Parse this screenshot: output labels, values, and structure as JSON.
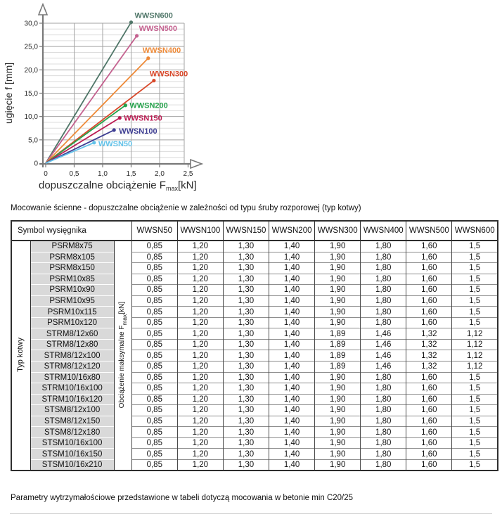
{
  "chart_data": {
    "type": "line",
    "title": "",
    "ylabel": "ugięcie f [mm]",
    "xlabel_pre": "dopuszczalne obciążenie F",
    "xlabel_sub": "max",
    "xlabel_post": "[kN]",
    "xlim": [
      0,
      2.5
    ],
    "ylim": [
      0,
      30
    ],
    "x_ticks": [
      "0",
      "0,5",
      "1,0",
      "1,5",
      "2,0",
      "2,5"
    ],
    "x_tick_values": [
      0,
      0.5,
      1.0,
      1.5,
      2.0,
      2.5
    ],
    "y_ticks": [
      "0",
      "5,0",
      "10,0",
      "15,0",
      "20,0",
      "25,0",
      "30,0"
    ],
    "y_tick_values": [
      0,
      5,
      10,
      15,
      20,
      25,
      30
    ],
    "grid": {
      "x_major": 0.5,
      "y_major": 5,
      "y_minor": 1.25,
      "on": true
    },
    "legend_position": "inline-labels",
    "series": [
      {
        "name": "WWSN600",
        "color": "#4f7668",
        "points": [
          [
            0,
            0
          ],
          [
            1.5,
            30.2
          ]
        ],
        "label_pos": "above"
      },
      {
        "name": "WWSN500",
        "color": "#c4618f",
        "points": [
          [
            0,
            0
          ],
          [
            1.6,
            27.3
          ]
        ],
        "label_pos": "above"
      },
      {
        "name": "WWSN400",
        "color": "#ee8a38",
        "points": [
          [
            0,
            0
          ],
          [
            1.8,
            22.5
          ]
        ],
        "label_pos": "above"
      },
      {
        "name": "WWSN300",
        "color": "#d8482a",
        "points": [
          [
            0,
            0
          ],
          [
            1.9,
            17.7
          ]
        ],
        "label_pos": "above"
      },
      {
        "name": "WWSN200",
        "color": "#26a34c",
        "points": [
          [
            0,
            0
          ],
          [
            1.4,
            12.4
          ]
        ],
        "label_pos": "right"
      },
      {
        "name": "WWSN150",
        "color": "#bb1b52",
        "points": [
          [
            0,
            0
          ],
          [
            1.3,
            9.7
          ]
        ],
        "label_pos": "right"
      },
      {
        "name": "WWSN100",
        "color": "#3d3d92",
        "points": [
          [
            0,
            0
          ],
          [
            1.2,
            7.1
          ]
        ],
        "label_pos": "right"
      },
      {
        "name": "WWSN50",
        "color": "#62c2e9",
        "points": [
          [
            0,
            0
          ],
          [
            0.85,
            4.4
          ]
        ],
        "label_pos": "right"
      }
    ]
  },
  "caption": "Mocowanie ścienne - dopuszczalne obciążenie w zależności od typu śruby rozporowej (typ kotwy)",
  "table": {
    "header_left": "Symbol wysięgnika",
    "columns": [
      "WWSN50",
      "WWSN100",
      "WWSN150",
      "WWSN200",
      "WWSN300",
      "WWSN400",
      "WWSN500",
      "WWSN600"
    ],
    "row_group_label": "Typ kotwy",
    "values_label_pre": "Obciążenie maksymalne F",
    "values_label_sub": "max",
    "values_label_post": "[kN]",
    "rows": [
      {
        "symbol": "PSRM8x75",
        "values": [
          "0,85",
          "1,20",
          "1,30",
          "1,40",
          "1,90",
          "1,80",
          "1,60",
          "1,5"
        ]
      },
      {
        "symbol": "PSRM8x105",
        "values": [
          "0,85",
          "1,20",
          "1,30",
          "1,40",
          "1,90",
          "1,80",
          "1,60",
          "1,5"
        ]
      },
      {
        "symbol": "PSRM8x150",
        "values": [
          "0,85",
          "1,20",
          "1,30",
          "1,40",
          "1,90",
          "1,80",
          "1,60",
          "1,5"
        ]
      },
      {
        "symbol": "PSRM10x85",
        "values": [
          "0,85",
          "1,20",
          "1,30",
          "1,40",
          "1,90",
          "1,80",
          "1,60",
          "1,5"
        ]
      },
      {
        "symbol": "PSRM10x90",
        "values": [
          "0,85",
          "1,20",
          "1,30",
          "1,40",
          "1,90",
          "1,80",
          "1,60",
          "1,5"
        ]
      },
      {
        "symbol": "PSRM10x95",
        "values": [
          "0,85",
          "1,20",
          "1,30",
          "1,40",
          "1,90",
          "1,80",
          "1,60",
          "1,5"
        ]
      },
      {
        "symbol": "PSRM10x115",
        "values": [
          "0,85",
          "1,20",
          "1,30",
          "1,40",
          "1,90",
          "1,80",
          "1,60",
          "1,5"
        ]
      },
      {
        "symbol": "PSRM10x120",
        "values": [
          "0,85",
          "1,20",
          "1,30",
          "1,40",
          "1,90",
          "1,80",
          "1,60",
          "1,5"
        ]
      },
      {
        "symbol": "STRM8/12x60",
        "values": [
          "0,85",
          "1,20",
          "1,30",
          "1,40",
          "1,89",
          "1,46",
          "1,32",
          "1,12"
        ]
      },
      {
        "symbol": "STRM8/12x80",
        "values": [
          "0,85",
          "1,20",
          "1,30",
          "1,40",
          "1,89",
          "1,46",
          "1,32",
          "1,12"
        ]
      },
      {
        "symbol": "STRM8/12x100",
        "values": [
          "0,85",
          "1,20",
          "1,30",
          "1,40",
          "1,89",
          "1,46",
          "1,32",
          "1,12"
        ]
      },
      {
        "symbol": "STRM8/12x120",
        "values": [
          "0,85",
          "1,20",
          "1,30",
          "1,40",
          "1,89",
          "1,46",
          "1,32",
          "1,12"
        ]
      },
      {
        "symbol": "STRM10/16x80",
        "values": [
          "0,85",
          "1,20",
          "1,30",
          "1,40",
          "1,90",
          "1,80",
          "1,60",
          "1,5"
        ]
      },
      {
        "symbol": "STRM10/16x100",
        "values": [
          "0,85",
          "1,20",
          "1,30",
          "1,40",
          "1,90",
          "1,80",
          "1,60",
          "1,5"
        ]
      },
      {
        "symbol": "STRM10/16x120",
        "values": [
          "0,85",
          "1,20",
          "1,30",
          "1,40",
          "1,90",
          "1,80",
          "1,60",
          "1,5"
        ]
      },
      {
        "symbol": "STSM8/12x100",
        "values": [
          "0,85",
          "1,20",
          "1,30",
          "1,40",
          "1,90",
          "1,80",
          "1,60",
          "1,5"
        ]
      },
      {
        "symbol": "STSM8/12x150",
        "values": [
          "0,85",
          "1,20",
          "1,30",
          "1,40",
          "1,90",
          "1,80",
          "1,60",
          "1,5"
        ]
      },
      {
        "symbol": "STSM8/12x180",
        "values": [
          "0,85",
          "1,20",
          "1,30",
          "1,40",
          "1,90",
          "1,80",
          "1,60",
          "1,5"
        ]
      },
      {
        "symbol": "STSM10/16x100",
        "values": [
          "0,85",
          "1,20",
          "1,30",
          "1,40",
          "1,90",
          "1,80",
          "1,60",
          "1,5"
        ]
      },
      {
        "symbol": "STSM10/16x150",
        "values": [
          "0,85",
          "1,20",
          "1,30",
          "1,40",
          "1,90",
          "1,80",
          "1,60",
          "1,5"
        ]
      },
      {
        "symbol": "STSM10/16x210",
        "values": [
          "0,85",
          "1,20",
          "1,30",
          "1,40",
          "1,90",
          "1,80",
          "1,60",
          "1,5"
        ]
      }
    ]
  },
  "footer": "Parametry wytrzymałościowe przedstawione w tabeli dotyczą mocowania w betonie min C20/25"
}
